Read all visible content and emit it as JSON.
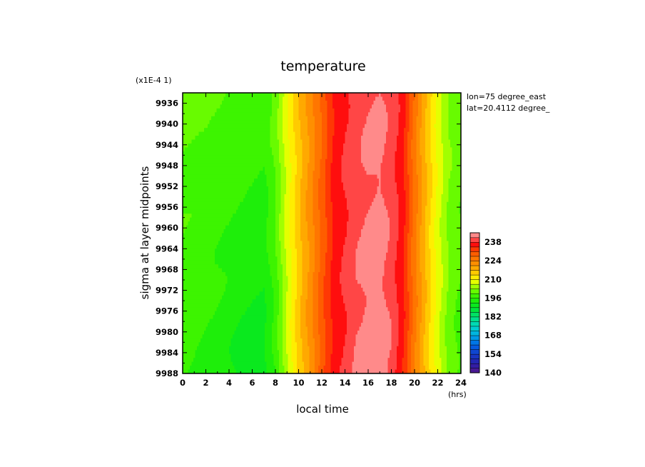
{
  "chart_data": {
    "type": "heatmap",
    "title": "temperature",
    "xlabel": "local time",
    "ylabel": "sigma at layer midpoints",
    "x_units": "(hrs)",
    "y_scale_label": "(x1E-4 1)",
    "annotations": [
      "lon=75 degree_east",
      "lat=20.4112 degree_"
    ],
    "xlim": [
      0,
      24
    ],
    "ylim": [
      9934,
      9988
    ],
    "y_inverted": true,
    "x_ticks": [
      "0",
      "2",
      "4",
      "6",
      "8",
      "10",
      "12",
      "14",
      "16",
      "18",
      "20",
      "22",
      "24"
    ],
    "y_ticks": [
      "9936",
      "9940",
      "9944",
      "9948",
      "9952",
      "9956",
      "9960",
      "9964",
      "9968",
      "9972",
      "9976",
      "9980",
      "9984",
      "9988"
    ],
    "colorbar": {
      "labels": [
        "238",
        "224",
        "210",
        "196",
        "182",
        "168",
        "154",
        "140"
      ],
      "min": 140,
      "max": 245,
      "step": 3.5
    },
    "x": [
      0,
      1,
      2,
      3,
      4,
      5,
      6,
      7,
      8,
      9,
      10,
      11,
      12,
      13,
      14,
      15,
      16,
      17,
      18,
      19,
      20,
      21,
      22,
      23,
      24
    ],
    "y": [
      9936,
      9940,
      9944,
      9948,
      9952,
      9956,
      9960,
      9964,
      9968,
      9972,
      9976,
      9980,
      9984,
      9988
    ],
    "profile_top": [
      200,
      200,
      200,
      199.5,
      199,
      198.5,
      197.5,
      197,
      201,
      209,
      216,
      222,
      228,
      235,
      238,
      240,
      241.5,
      242,
      240,
      236,
      226,
      217,
      209,
      203,
      201
    ],
    "profile_bottom": [
      197,
      196,
      194.5,
      193.5,
      192.5,
      191.5,
      191,
      190.5,
      196,
      206,
      215,
      222,
      230,
      236,
      238.5,
      242,
      243,
      243.5,
      241,
      235,
      225,
      216,
      208,
      201,
      198
    ]
  }
}
